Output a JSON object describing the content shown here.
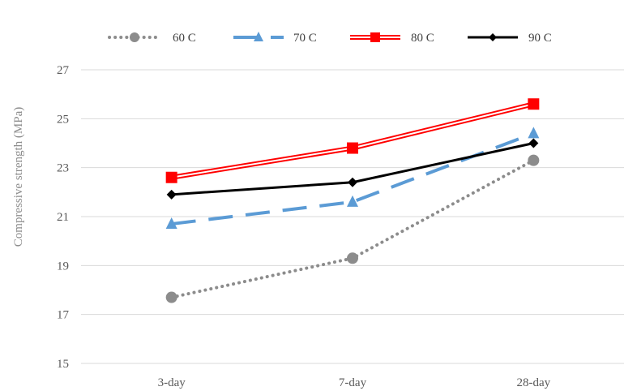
{
  "chart_data": {
    "type": "line",
    "categories": [
      "3-day",
      "7-day",
      "28-day"
    ],
    "ylabel": "Compressive strength (MPa)",
    "xlabel": "",
    "ylim": [
      15,
      27
    ],
    "yticks": [
      15,
      17,
      19,
      21,
      23,
      25,
      27
    ],
    "grid": "horizontal",
    "legend_position": "top",
    "series": [
      {
        "name": "60 C",
        "values": [
          17.7,
          19.3,
          23.3
        ],
        "color": "#8c8c8c",
        "style": "dotted",
        "marker": "circle"
      },
      {
        "name": "70 C",
        "values": [
          20.7,
          21.6,
          24.4
        ],
        "color": "#5b9bd5",
        "style": "long-dash",
        "marker": "triangle"
      },
      {
        "name": "80 C",
        "values": [
          22.6,
          23.8,
          25.6
        ],
        "color": "#ff0000",
        "style": "double-line",
        "marker": "square"
      },
      {
        "name": "90 C",
        "values": [
          21.9,
          22.4,
          24.0
        ],
        "color": "#000000",
        "style": "solid",
        "marker": "diamond"
      }
    ]
  }
}
